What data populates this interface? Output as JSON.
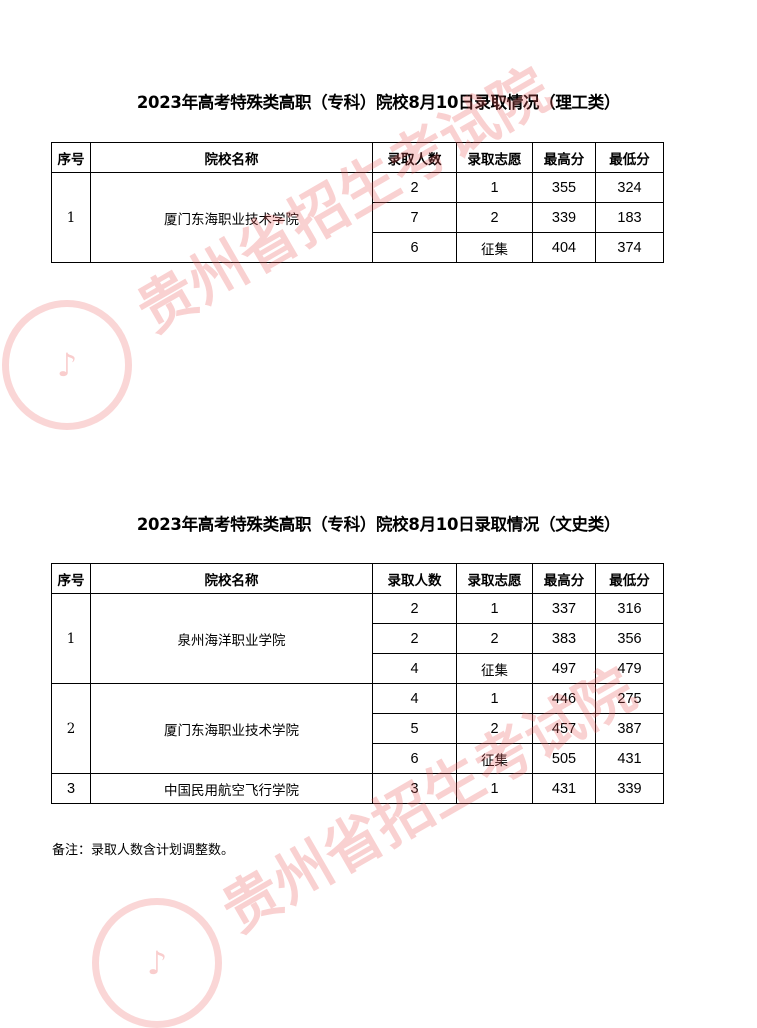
{
  "watermark": {
    "text": "贵州省招生考试院",
    "color": "#eb5a5a"
  },
  "table_headers": [
    "序号",
    "院校名称",
    "录取人数",
    "录取志愿",
    "最高分",
    "最低分"
  ],
  "section1": {
    "title": "2023年高考特殊类高职（专科）院校8月10日录取情况（理工类）",
    "groups": [
      {
        "index": "1",
        "school": "厦门东海职业技术学院",
        "rows": [
          [
            "2",
            "1",
            "355",
            "324"
          ],
          [
            "7",
            "2",
            "339",
            "183"
          ],
          [
            "6",
            "征集",
            "404",
            "374"
          ]
        ]
      }
    ]
  },
  "section2": {
    "title": "2023年高考特殊类高职（专科）院校8月10日录取情况（文史类）",
    "groups": [
      {
        "index": "1",
        "school": "泉州海洋职业学院",
        "rows": [
          [
            "2",
            "1",
            "337",
            "316"
          ],
          [
            "2",
            "2",
            "383",
            "356"
          ],
          [
            "4",
            "征集",
            "497",
            "479"
          ]
        ]
      },
      {
        "index": "2",
        "school": "厦门东海职业技术学院",
        "rows": [
          [
            "4",
            "1",
            "446",
            "275"
          ],
          [
            "5",
            "2",
            "457",
            "387"
          ],
          [
            "6",
            "征集",
            "505",
            "431"
          ]
        ]
      },
      {
        "index": "3",
        "school": "中国民用航空飞行学院",
        "rows": [
          [
            "3",
            "1",
            "431",
            "339"
          ]
        ]
      }
    ]
  },
  "note": "备注：录取人数含计划调整数。"
}
